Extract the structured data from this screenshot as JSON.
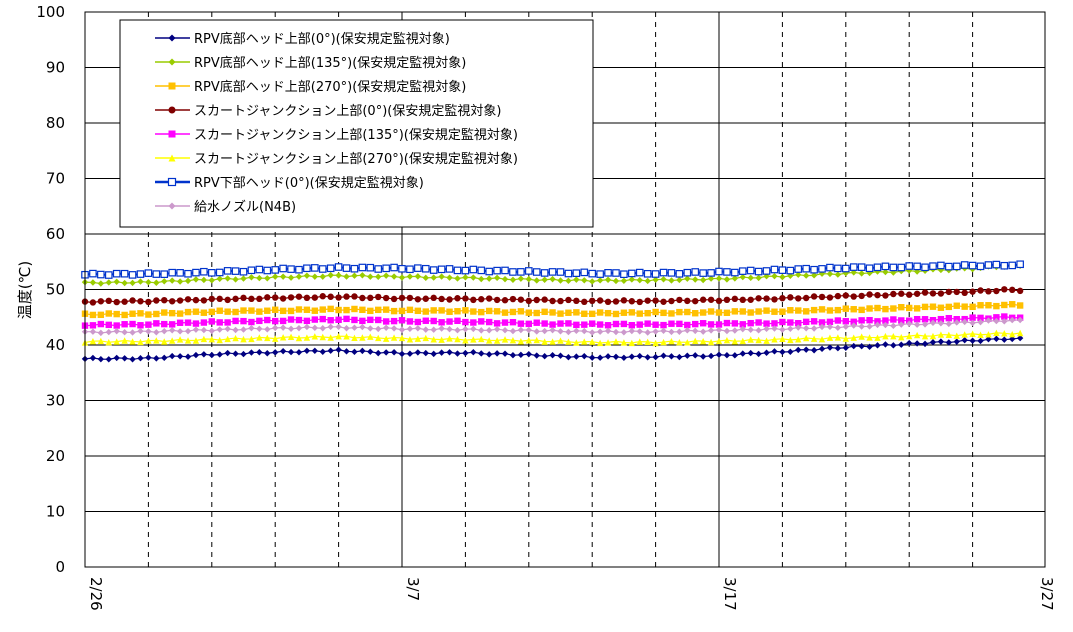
{
  "chart_data": {
    "type": "line",
    "title": "",
    "xlabel": "",
    "ylabel": "温度(℃)",
    "ylim": [
      0,
      100
    ],
    "yticks": [
      0,
      10,
      20,
      30,
      40,
      50,
      60,
      70,
      80,
      90,
      100
    ],
    "x_tick_labels": [
      "2/26",
      "3/7",
      "3/17",
      "3/27"
    ],
    "grid": "horizontal solid, vertical dashed every 2 days",
    "legend_placement": "top-left",
    "categories": [
      "2/26",
      "2/28",
      "3/2",
      "3/4",
      "3/6",
      "3/8",
      "3/10",
      "3/12",
      "3/14",
      "3/16",
      "3/18",
      "3/20",
      "3/22",
      "3/24",
      "3/26",
      "3/27"
    ],
    "series": [
      {
        "name": "RPV底部ヘッド上部(0°)(保安規定監視対象)",
        "color": "#000080",
        "marker": "diamond",
        "values": [
          37.5,
          37.6,
          38.3,
          38.7,
          39.0,
          38.5,
          38.6,
          38.2,
          37.8,
          37.9,
          38.1,
          38.8,
          39.6,
          40.2,
          40.8,
          41.1
        ]
      },
      {
        "name": "RPV底部ヘッド上部(135°)(保安規定監視対象)",
        "color": "#99CC00",
        "marker": "diamond",
        "values": [
          51.2,
          51.3,
          51.8,
          52.2,
          52.5,
          52.3,
          52.1,
          51.8,
          51.6,
          51.7,
          51.9,
          52.4,
          52.9,
          53.3,
          53.8,
          54.2
        ]
      },
      {
        "name": "RPV底部ヘッド上部(270°)(保安規定監視対象)",
        "color": "#FFC000",
        "marker": "square",
        "values": [
          45.5,
          45.6,
          46.0,
          46.2,
          46.4,
          46.2,
          46.1,
          45.9,
          45.7,
          45.8,
          45.9,
          46.1,
          46.4,
          46.7,
          47.0,
          47.2
        ]
      },
      {
        "name": "スカートジャンクション上部(0°)(保安規定監視対象)",
        "color": "#800000",
        "marker": "circle",
        "values": [
          47.8,
          47.9,
          48.2,
          48.5,
          48.7,
          48.4,
          48.3,
          48.1,
          47.9,
          47.9,
          48.1,
          48.4,
          48.8,
          49.2,
          49.6,
          49.9
        ]
      },
      {
        "name": "スカートジャンクション上部(135°)(保安規定監視対象)",
        "color": "#FF00FF",
        "marker": "square",
        "values": [
          43.6,
          43.7,
          44.1,
          44.4,
          44.6,
          44.3,
          44.2,
          43.9,
          43.7,
          43.7,
          43.8,
          44.0,
          44.3,
          44.5,
          44.8,
          45.0
        ]
      },
      {
        "name": "スカートジャンクション上部(270°)(保安規定監視対象)",
        "color": "#FFFF00",
        "marker": "triangle",
        "values": [
          40.6,
          40.7,
          41.0,
          41.3,
          41.5,
          41.2,
          41.0,
          40.8,
          40.5,
          40.5,
          40.7,
          41.0,
          41.3,
          41.6,
          41.9,
          42.1
        ]
      },
      {
        "name": "RPV下部ヘッド(0°)(保安規定監視対象)",
        "color": "#0033CC",
        "marker": "hollow-square",
        "values": [
          52.7,
          52.8,
          53.1,
          53.6,
          53.9,
          53.8,
          53.5,
          53.2,
          52.9,
          52.9,
          53.1,
          53.5,
          53.9,
          54.1,
          54.3,
          54.4
        ]
      },
      {
        "name": "給水ノズル(N4B)",
        "color": "#CC99CC",
        "marker": "diamond",
        "values": [
          42.3,
          42.4,
          42.7,
          43.0,
          43.2,
          42.9,
          42.8,
          42.6,
          42.4,
          42.4,
          42.6,
          42.9,
          43.3,
          43.7,
          44.1,
          44.4
        ]
      }
    ]
  }
}
